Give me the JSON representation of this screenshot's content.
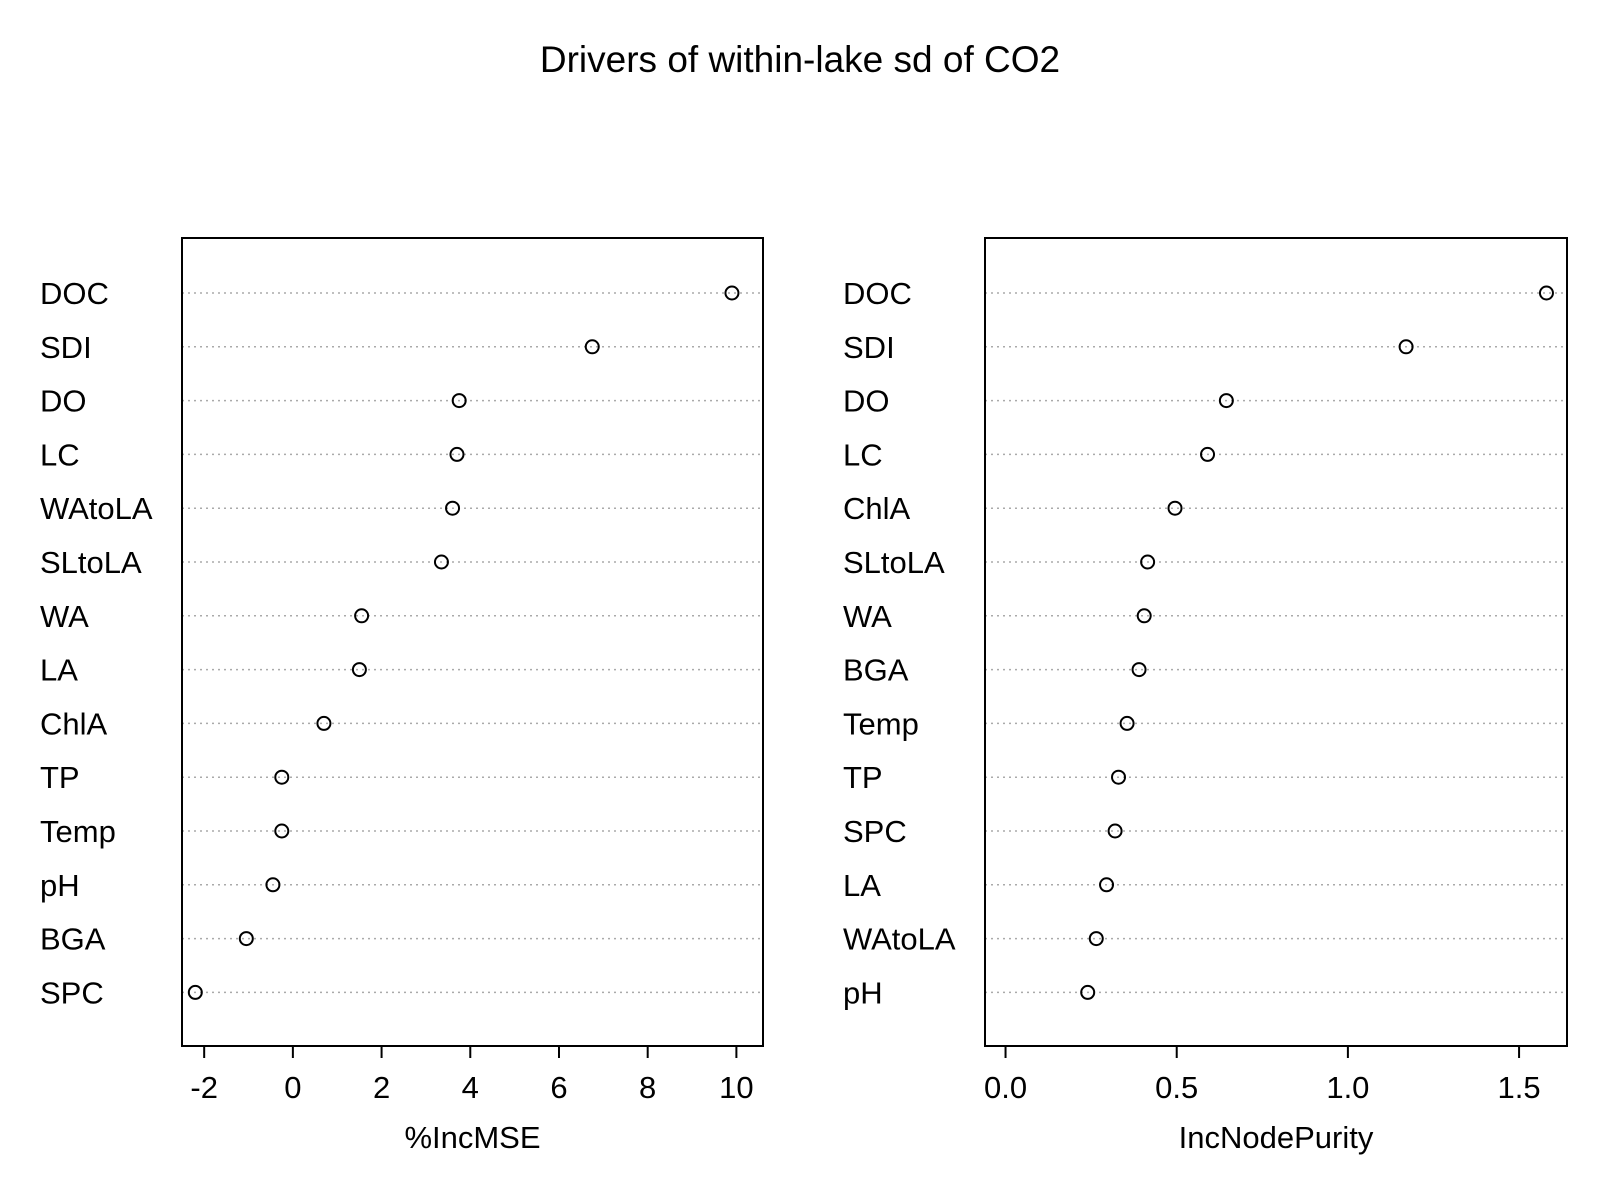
{
  "title": "Drivers of within-lake sd of CO2",
  "chart_data": [
    {
      "type": "scatter",
      "xlabel": "%IncMSE",
      "xlim": [
        -2.5,
        10.6
      ],
      "ticks": [
        -2,
        0,
        2,
        4,
        6,
        8,
        10
      ],
      "tick_labels": [
        "-2",
        "0",
        "2",
        "4",
        "6",
        "8",
        "10"
      ],
      "categories": [
        "DOC",
        "SDI",
        "DO",
        "LC",
        "WAtoLA",
        "SLtoLA",
        "WA",
        "LA",
        "ChlA",
        "TP",
        "Temp",
        "pH",
        "BGA",
        "SPC"
      ],
      "values": [
        9.9,
        6.75,
        3.75,
        3.7,
        3.6,
        3.35,
        1.55,
        1.5,
        0.7,
        -0.25,
        -0.25,
        -0.45,
        -1.05,
        -2.2
      ]
    },
    {
      "type": "scatter",
      "xlabel": "IncNodePurity",
      "xlim": [
        -0.06,
        1.64
      ],
      "ticks": [
        0.0,
        0.5,
        1.0,
        1.5
      ],
      "tick_labels": [
        "0.0",
        "0.5",
        "1.0",
        "1.5"
      ],
      "categories": [
        "DOC",
        "SDI",
        "DO",
        "LC",
        "ChlA",
        "SLtoLA",
        "WA",
        "BGA",
        "Temp",
        "TP",
        "SPC",
        "LA",
        "WAtoLA",
        "pH"
      ],
      "values": [
        1.58,
        1.17,
        0.645,
        0.59,
        0.495,
        0.415,
        0.405,
        0.39,
        0.355,
        0.33,
        0.32,
        0.295,
        0.265,
        0.24
      ]
    }
  ]
}
